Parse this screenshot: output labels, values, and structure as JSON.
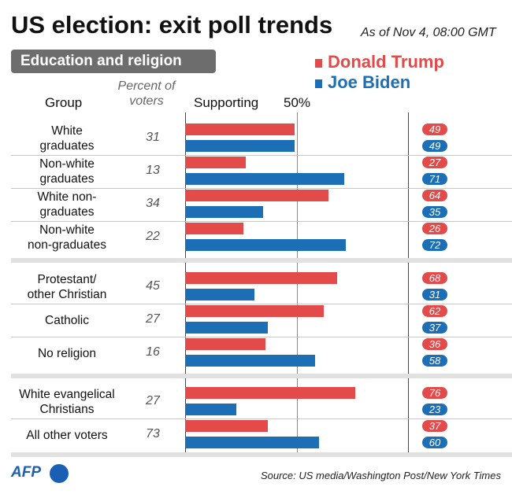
{
  "header": {
    "title": "US election: exit poll trends",
    "as_of": "As of Nov 4, 08:00 GMT",
    "section": "Education and religion"
  },
  "columns": {
    "group": "Group",
    "percent_line1": "Percent of",
    "percent_line2": "voters",
    "supporting": "Supporting",
    "half_mark": "50%"
  },
  "colors": {
    "trump": "#e34a4a",
    "biden": "#1c6fb5"
  },
  "chart_data": {
    "type": "bar",
    "orientation": "horizontal",
    "xlim": [
      0,
      100
    ],
    "reference_line": 50,
    "series": [
      {
        "name": "Donald Trump",
        "color": "#e34a4a",
        "values": [
          49,
          27,
          64,
          26,
          68,
          62,
          36,
          76,
          37
        ]
      },
      {
        "name": "Joe Biden",
        "color": "#1c6fb5",
        "values": [
          49,
          71,
          35,
          72,
          31,
          37,
          58,
          23,
          60
        ]
      }
    ],
    "categories": [
      "White graduates",
      "Non-white graduates",
      "White non-graduates",
      "Non-white non-graduates",
      "Protestant/ other Christian",
      "Catholic",
      "No religion",
      "White evangelical Christians",
      "All other voters"
    ],
    "rows": [
      {
        "group": [
          "White",
          "graduates"
        ],
        "percent": "31",
        "trump": 49,
        "biden": 49
      },
      {
        "group": [
          "Non-white",
          "graduates"
        ],
        "percent": "13",
        "trump": 27,
        "biden": 71
      },
      {
        "group": [
          "White non-",
          "graduates"
        ],
        "percent": "34",
        "trump": 64,
        "biden": 35
      },
      {
        "group": [
          "Non-white",
          "non-graduates"
        ],
        "percent": "22",
        "trump": 26,
        "biden": 72
      },
      {
        "group": [
          "Protestant/",
          "other Christian"
        ],
        "percent": "45",
        "trump": 68,
        "biden": 31
      },
      {
        "group": [
          "Catholic"
        ],
        "percent": "27",
        "trump": 62,
        "biden": 37
      },
      {
        "group": [
          "No religion"
        ],
        "percent": "16",
        "trump": 36,
        "biden": 58
      },
      {
        "group": [
          "White evangelical",
          "Christians"
        ],
        "percent": "27",
        "trump": 76,
        "biden": 23
      },
      {
        "group": [
          "All other voters"
        ],
        "percent": "73",
        "trump": 37,
        "biden": 60
      }
    ]
  },
  "footer": {
    "logo": "AFP",
    "source": "Source: US media/Washington Post/New York Times"
  }
}
